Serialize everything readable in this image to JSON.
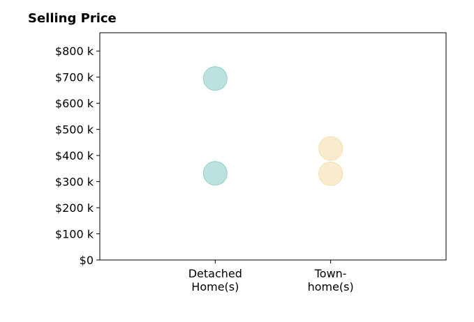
{
  "chart_data": {
    "type": "scatter",
    "title": "Selling Price",
    "xlabel": "",
    "ylabel": "",
    "categories": [
      [
        "Detached",
        "Home(s)"
      ],
      [
        "Town-",
        "home(s)"
      ]
    ],
    "y_ticks": [
      "$0",
      "$100 k",
      "$200 k",
      "$300 k",
      "$400 k",
      "$500 k",
      "$600 k",
      "$700 k",
      "$800 k"
    ],
    "y_tick_values": [
      0,
      100000,
      200000,
      300000,
      400000,
      500000,
      600000,
      700000,
      800000
    ],
    "ylim": [
      0,
      870000
    ],
    "xlim": [
      -1,
      2
    ],
    "grid": false,
    "series": [
      {
        "category_index": 0,
        "values": [
          695000,
          332000
        ],
        "color": "#8ecfc9"
      },
      {
        "category_index": 1,
        "values": [
          427000,
          330000
        ],
        "color": "#f5dfae"
      }
    ]
  }
}
